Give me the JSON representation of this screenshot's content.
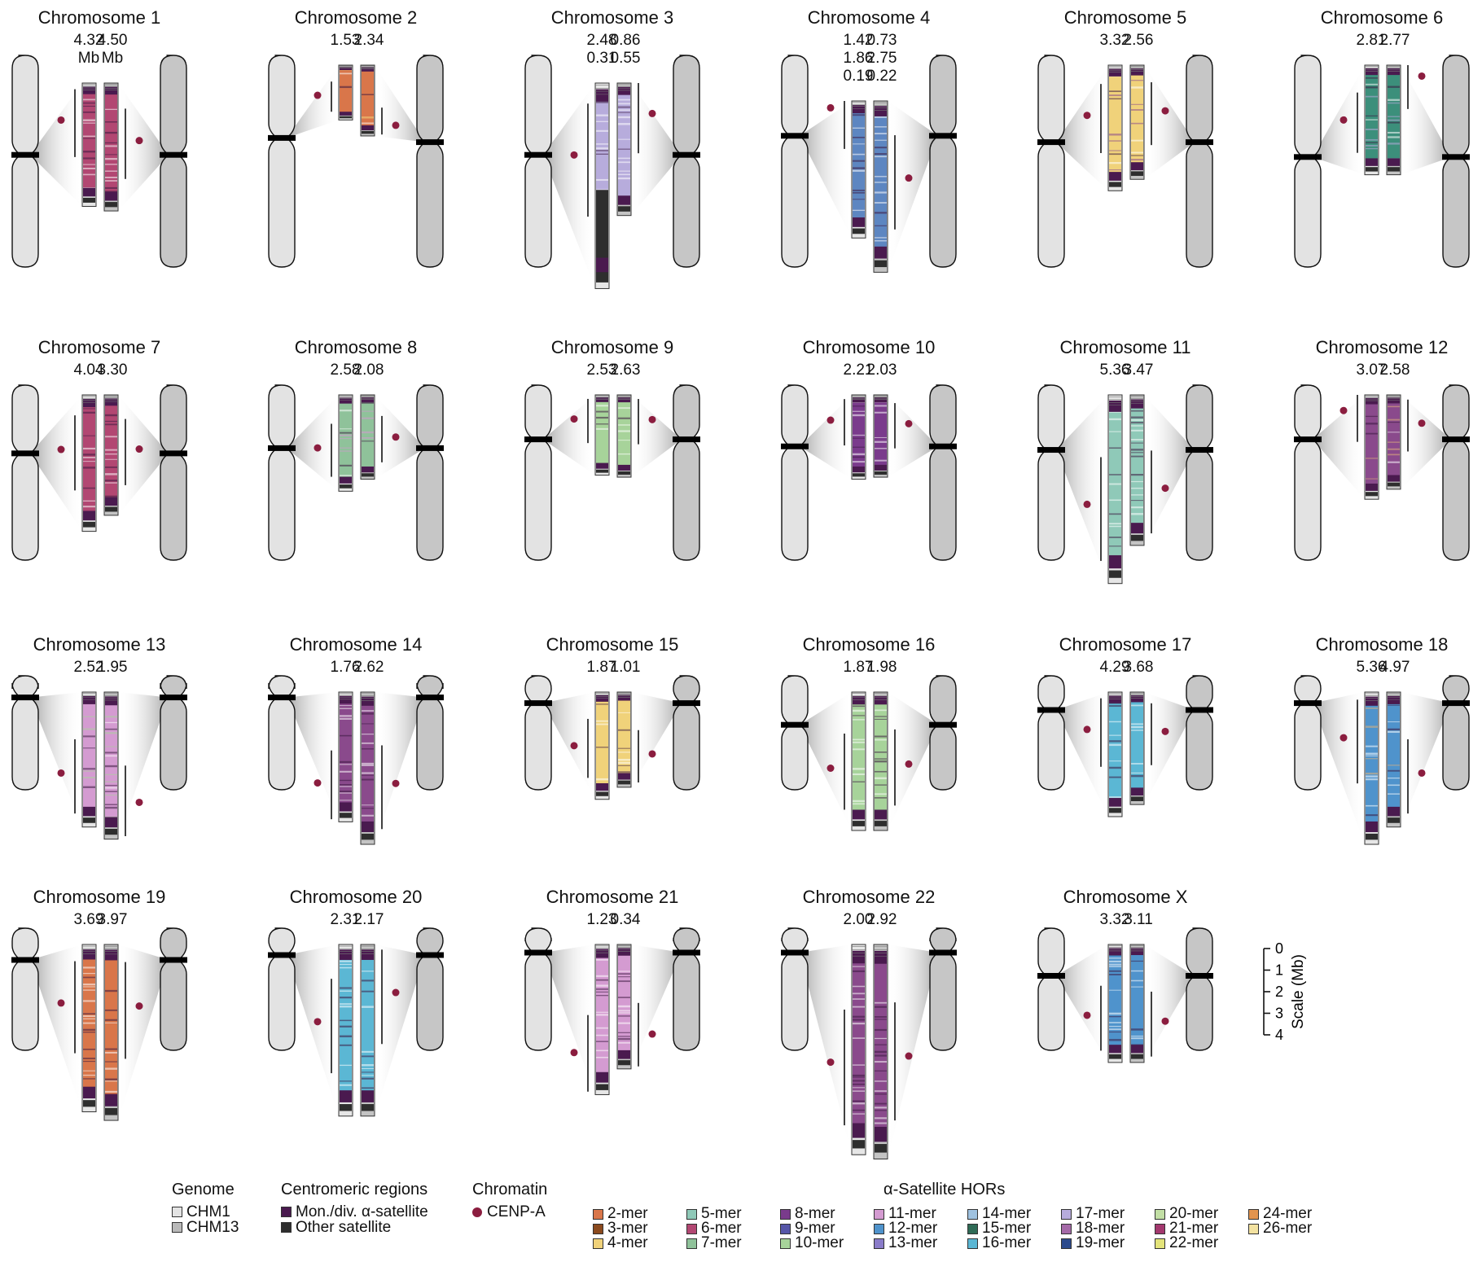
{
  "figure": {
    "colors": {
      "chm1_body": "#e3e3e3",
      "chm13_body": "#c6c6c6",
      "centromere_band": "#000000",
      "cenpa": "#8b1d3f",
      "monomeric": "#4a1a4f",
      "other_satellite": "#2e2e2e",
      "chm1_flank": "#e6e6e6",
      "chm13_flank": "#c4c4c4"
    },
    "chromosomes": [
      {
        "title": "Chromosome 1",
        "sizes": [
          "4.32\nMb",
          "4.50\nMb"
        ],
        "hor": "#b24772",
        "cen1": 0.47,
        "cen2": 0.47,
        "lenA": 0.54,
        "lenB": 0.56,
        "dotA": 0.3,
        "dotB": 0.45
      },
      {
        "title": "Chromosome 2",
        "sizes": [
          "1.53",
          "2.34"
        ],
        "hor": "#d9764a",
        "hor2": "#f0d27a",
        "cen1": 0.39,
        "cen2": 0.41,
        "lenA": 0.24,
        "lenB": 0.31,
        "dotA": 0.55,
        "dotB": 0.85
      },
      {
        "title": "Chromosome 3",
        "sizes": [
          "2.48\n0.31",
          "0.86\n0.55"
        ],
        "hor": "#b7acdc",
        "cen1": 0.47,
        "cen2": 0.47,
        "lenA": 0.9,
        "lenB": 0.58,
        "dotA": 0.35,
        "dotB": 0.23,
        "dark": 0.55
      },
      {
        "title": "Chromosome 4",
        "sizes": [
          "1.42\n1.86\n0.19",
          "0.73\n2.75\n0.22"
        ],
        "hor": "#5d86c1",
        "cen1": 0.38,
        "cen2": 0.38,
        "lenA": 0.6,
        "lenB": 0.75,
        "dotA": 0.05,
        "dotB": 0.45
      },
      {
        "title": "Chromosome 5",
        "sizes": [
          "3.32",
          "2.56"
        ],
        "hor": "#f0d27a",
        "hor2": "#8a4a8c",
        "cen1": 0.41,
        "cen2": 0.41,
        "lenA": 0.55,
        "lenB": 0.5,
        "dotA": 0.4,
        "dotB": 0.4
      },
      {
        "title": "Chromosome 6",
        "sizes": [
          "2.81",
          "2.77"
        ],
        "hor": "#3c8f7b",
        "hor2": "#b7acdc",
        "cen1": 0.48,
        "cen2": 0.48,
        "lenA": 0.48,
        "lenB": 0.48,
        "dotA": 0.5,
        "dotB": 0.1
      },
      {
        "title": "Chromosome 7",
        "sizes": [
          "4.04",
          "3.30"
        ],
        "hor": "#b24772",
        "cen1": 0.39,
        "cen2": 0.39,
        "lenA": 0.68,
        "lenB": 0.6,
        "dotA": 0.4,
        "dotB": 0.45
      },
      {
        "title": "Chromosome 8",
        "sizes": [
          "2.58",
          "2.08"
        ],
        "hor": "#8fc29a",
        "hor2": "#d49bd1",
        "cen1": 0.36,
        "cen2": 0.36,
        "lenA": 0.48,
        "lenB": 0.42,
        "dotA": 0.55,
        "dotB": 0.5
      },
      {
        "title": "Chromosome 9",
        "sizes": [
          "2.53",
          "2.63"
        ],
        "hor": "#a7d39a",
        "cen1": 0.31,
        "cen2": 0.31,
        "lenA": 0.4,
        "lenB": 0.41,
        "dotA": 0.3,
        "dotB": 0.3
      },
      {
        "title": "Chromosome 10",
        "sizes": [
          "2.21",
          "2.03"
        ],
        "hor": "#7a3b8c",
        "cen1": 0.35,
        "cen2": 0.35,
        "lenA": 0.42,
        "lenB": 0.41,
        "dotA": 0.3,
        "dotB": 0.35
      },
      {
        "title": "Chromosome 11",
        "sizes": [
          "5.36",
          "3.47"
        ],
        "hor": "#8fc9b8",
        "cen1": 0.37,
        "cen2": 0.37,
        "lenA": 0.94,
        "lenB": 0.75,
        "dotA": 0.58,
        "dotB": 0.62
      },
      {
        "title": "Chromosome 12",
        "sizes": [
          "3.07",
          "2.58"
        ],
        "hor": "#8a4a8c",
        "hor2": "#e2b37a",
        "cen1": 0.31,
        "cen2": 0.31,
        "lenA": 0.52,
        "lenB": 0.47,
        "dotA": 0.15,
        "dotB": 0.3
      },
      {
        "title": "Chromosome 13",
        "sizes": [
          "2.52",
          "1.95"
        ],
        "hor": "#d49bd1",
        "hor2": "#a7d39a",
        "cen1": 0.19,
        "cen2": 0.19,
        "lenA": 0.78,
        "lenB": 0.85,
        "dotA": 0.6,
        "dotB": 0.75
      },
      {
        "title": "Chromosome 14",
        "sizes": [
          "1.76",
          "2.62"
        ],
        "hor": "#8a4a8c",
        "cen1": 0.19,
        "cen2": 0.19,
        "lenA": 0.75,
        "lenB": 0.88,
        "dotA": 0.7,
        "dotB": 0.6
      },
      {
        "title": "Chromosome 15",
        "sizes": [
          "1.87",
          "1.01"
        ],
        "hor": "#f0d27a",
        "cen1": 0.24,
        "cen2": 0.24,
        "lenA": 0.62,
        "lenB": 0.55,
        "dotA": 0.5,
        "dotB": 0.65
      },
      {
        "title": "Chromosome 16",
        "sizes": [
          "1.87",
          "1.98"
        ],
        "hor": "#a7d39a",
        "cen1": 0.43,
        "cen2": 0.43,
        "lenA": 0.8,
        "lenB": 0.8,
        "dotA": 0.55,
        "dotB": 0.52
      },
      {
        "title": "Chromosome 17",
        "sizes": [
          "4.29",
          "3.68"
        ],
        "hor": "#5bb7d4",
        "cen1": 0.3,
        "cen2": 0.3,
        "lenA": 0.72,
        "lenB": 0.65,
        "dotA": 0.3,
        "dotB": 0.35
      },
      {
        "title": "Chromosome 18",
        "sizes": [
          "5.36",
          "4.97"
        ],
        "hor": "#4f93cc",
        "hor2": "#e2b37a",
        "cen1": 0.24,
        "cen2": 0.24,
        "lenA": 0.88,
        "lenB": 0.78,
        "dotA": 0.3,
        "dotB": 0.6
      },
      {
        "title": "Chromosome 19",
        "sizes": [
          "3.69",
          "3.97"
        ],
        "hor": "#d9764a",
        "cen1": 0.26,
        "cen2": 0.26,
        "lenA": 0.78,
        "lenB": 0.82,
        "dotA": 0.35,
        "dotB": 0.35
      },
      {
        "title": "Chromosome 20",
        "sizes": [
          "2.31",
          "2.17"
        ],
        "hor": "#5bb7d4",
        "cen1": 0.22,
        "cen2": 0.22,
        "lenA": 0.8,
        "lenB": 0.8,
        "dotA": 0.45,
        "dotB": 0.28
      },
      {
        "title": "Chromosome 21",
        "sizes": [
          "1.23",
          "0.34"
        ],
        "hor": "#d49bd1",
        "cen1": 0.2,
        "cen2": 0.2,
        "lenA": 0.7,
        "lenB": 0.58,
        "dotA": 0.72,
        "dotB": 0.72
      },
      {
        "title": "Chromosome 22",
        "sizes": [
          "2.00",
          "2.92"
        ],
        "hor": "#8a4a8c",
        "cen1": 0.2,
        "cen2": 0.2,
        "lenA": 0.98,
        "lenB": 1.0,
        "dotA": 0.56,
        "dotB": 0.52
      },
      {
        "title": "Chromosome X",
        "sizes": [
          "3.32",
          "3.11"
        ],
        "hor": "#4f93cc",
        "cen1": 0.39,
        "cen2": 0.39,
        "lenA": 0.55,
        "lenB": 0.55,
        "dotA": 0.6,
        "dotB": 0.65
      }
    ],
    "scale": {
      "label": "Scale (Mb)",
      "ticks": [
        "0",
        "1",
        "2",
        "3",
        "4"
      ]
    }
  },
  "legend": {
    "genome": {
      "title": "Genome",
      "items": [
        {
          "label": "CHM1",
          "color": "#e3e3e3"
        },
        {
          "label": "CHM13",
          "color": "#b9b9b9"
        }
      ]
    },
    "regions": {
      "title": "Centromeric regions",
      "items": [
        {
          "label": "Mon./div. α-satellite",
          "color": "#4a1a4f"
        },
        {
          "label": "Other satellite",
          "color": "#2e2e2e"
        }
      ]
    },
    "chromatin": {
      "title": "Chromatin",
      "items": [
        {
          "label": "CENP-A",
          "color": "#8b1d3f"
        }
      ]
    },
    "hors": {
      "title": "α-Satellite HORs",
      "items": [
        {
          "label": "2-mer",
          "color": "#d9764a"
        },
        {
          "label": "3-mer",
          "color": "#8b4a1e"
        },
        {
          "label": "4-mer",
          "color": "#f0d27a"
        },
        {
          "label": "5-mer",
          "color": "#8fc9b8"
        },
        {
          "label": "6-mer",
          "color": "#b24772"
        },
        {
          "label": "7-mer",
          "color": "#8fc29a"
        },
        {
          "label": "8-mer",
          "color": "#7a3b8c"
        },
        {
          "label": "9-mer",
          "color": "#5656a8"
        },
        {
          "label": "10-mer",
          "color": "#a7d39a"
        },
        {
          "label": "11-mer",
          "color": "#d49bd1"
        },
        {
          "label": "12-mer",
          "color": "#4f93cc"
        },
        {
          "label": "13-mer",
          "color": "#8a7cc9"
        },
        {
          "label": "14-mer",
          "color": "#9fc2e0"
        },
        {
          "label": "15-mer",
          "color": "#2f6b56"
        },
        {
          "label": "16-mer",
          "color": "#5bb7d4"
        },
        {
          "label": "17-mer",
          "color": "#b7acdc"
        },
        {
          "label": "18-mer",
          "color": "#a56aa8"
        },
        {
          "label": "19-mer",
          "color": "#2c4a8c"
        },
        {
          "label": "20-mer",
          "color": "#c2dfa5"
        },
        {
          "label": "21-mer",
          "color": "#a3386e"
        },
        {
          "label": "22-mer",
          "color": "#e3e37a"
        },
        {
          "label": "24-mer",
          "color": "#e2944e"
        },
        {
          "label": "26-mer",
          "color": "#f3e2a0"
        }
      ]
    }
  }
}
